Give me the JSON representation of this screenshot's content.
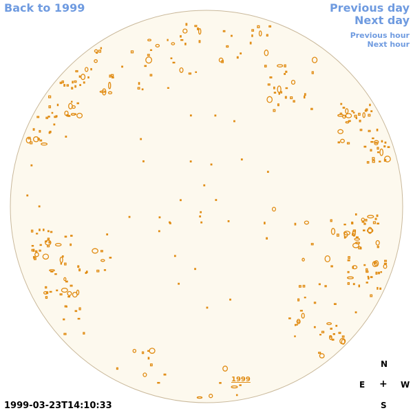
{
  "navigation": {
    "back_label": "Back to 1999",
    "previous_day_label": "Previous day",
    "next_day_label": "Next day",
    "previous_hour_label": "Previous hour",
    "next_hour_label": "Next hour"
  },
  "image": {
    "year_label": "1999",
    "timestamp": "1999-03-23T14:10:33",
    "disk_fill_color": "#fdf9ee",
    "disk_border_color": "#c9b89a",
    "contour_color": "#e08a10"
  },
  "compass": {
    "north": "N",
    "south": "S",
    "east": "E",
    "west": "W",
    "center": "+"
  }
}
